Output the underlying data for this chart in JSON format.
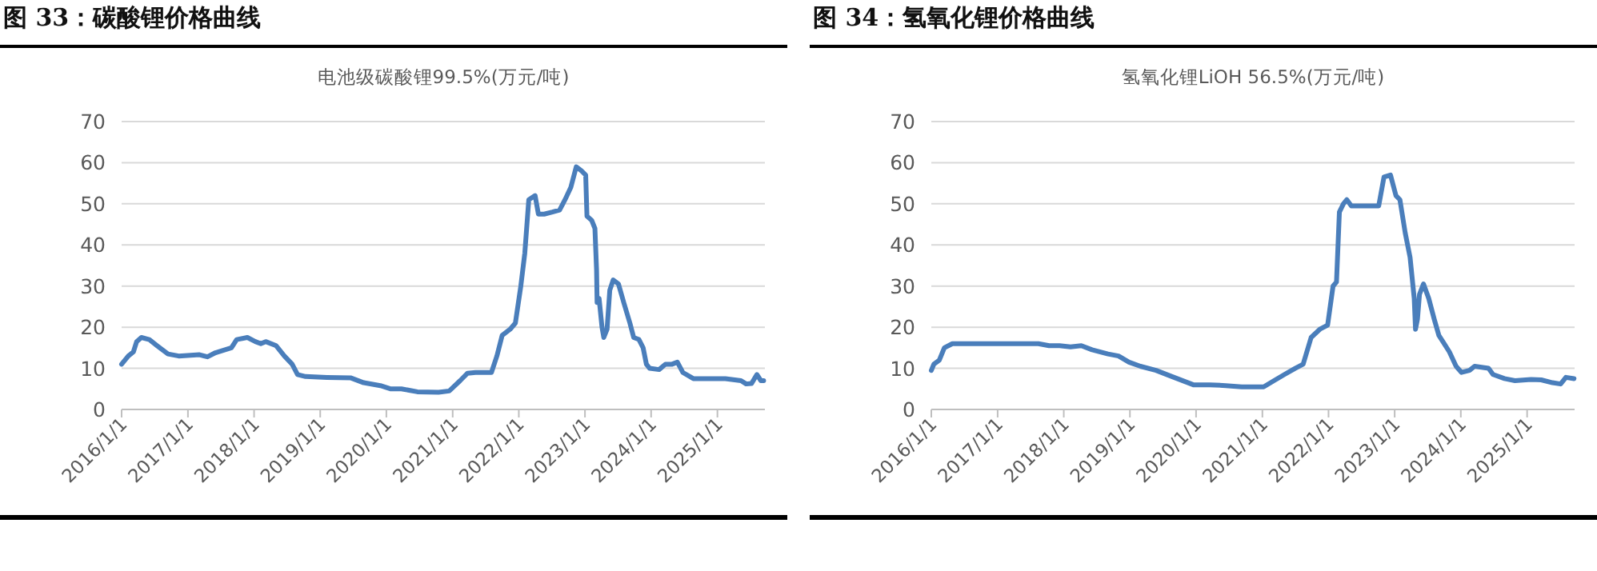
{
  "chart_data": [
    {
      "type": "line",
      "title": "图 33：碳酸锂价格曲线",
      "subtitle": "电池级碳酸锂99.5%(万元/吨)",
      "x": [
        "2016-01-01",
        "2016-02-07",
        "2016-03-06",
        "2016-03-24",
        "2016-04-19",
        "2016-06-02",
        "2016-07-15",
        "2016-09-13",
        "2016-11-11",
        "2017-03-06",
        "2017-04-19",
        "2017-06-02",
        "2017-08-29",
        "2017-09-27",
        "2017-11-25",
        "2018-01-08",
        "2018-02-07",
        "2018-03-06",
        "2018-05-03",
        "2018-06-17",
        "2018-07-30",
        "2018-08-29",
        "2018-10-12",
        "2019-02-07",
        "2019-06-17",
        "2019-08-29",
        "2019-11-29",
        "2020-01-26",
        "2020-03-24",
        "2020-06-20",
        "2020-10-15",
        "2020-12-13",
        "2021-02-11",
        "2021-03-24",
        "2021-05-07",
        "2021-08-03",
        "2021-09-02",
        "2021-10-01",
        "2021-11-14",
        "2021-12-13",
        "2022-01-12",
        "2022-02-03",
        "2022-02-25",
        "2022-04-01",
        "2022-04-19",
        "2022-05-21",
        "2022-07-05",
        "2022-08-14",
        "2022-09-13",
        "2022-10-15",
        "2022-11-14",
        "2022-12-13",
        "2023-01-05",
        "2023-01-12",
        "2023-02-07",
        "2023-02-25",
        "2023-03-06",
        "2023-03-09",
        "2023-03-20",
        "2023-04-05",
        "2023-04-15",
        "2023-05-03",
        "2023-05-18",
        "2023-06-06",
        "2023-07-05",
        "2023-08-03",
        "2023-09-06",
        "2023-09-27",
        "2023-10-26",
        "2023-11-18",
        "2023-12-06",
        "2023-12-24",
        "2024-02-14",
        "2024-03-20",
        "2024-04-26",
        "2024-05-25",
        "2024-06-24",
        "2024-08-21",
        "2024-11-18",
        "2025-02-14",
        "2025-05-11",
        "2025-06-09",
        "2025-07-08",
        "2025-08-07",
        "2025-08-29",
        "2025-09-13"
      ],
      "series": [
        {
          "color": "#4a7ebb",
          "values": [
            11,
            13,
            14,
            16.5,
            17.5,
            17,
            15.5,
            13.5,
            13,
            13.3,
            12.8,
            13.8,
            15,
            17,
            17.5,
            16.5,
            16,
            16.5,
            15.5,
            13,
            11,
            8.5,
            8,
            7.8,
            7.7,
            6.5,
            5.8,
            5,
            5,
            4.3,
            4.2,
            4.5,
            7,
            8.8,
            9,
            9,
            13,
            18,
            19.5,
            21,
            30,
            38,
            51,
            52,
            47.5,
            47.5,
            48,
            48.5,
            51,
            54,
            59,
            58,
            57,
            47,
            46,
            44,
            34,
            26,
            27,
            20,
            17.5,
            19.5,
            29,
            31.5,
            30.5,
            26,
            21,
            17.5,
            17,
            15,
            11,
            10,
            9.7,
            11,
            11,
            11.5,
            9,
            7.5,
            7.5,
            7.5,
            7,
            6.2,
            6.3,
            8.5,
            7,
            7
          ]
        }
      ],
      "xlim": [
        "2016-01-01",
        "2025-09-20"
      ],
      "xticks": [
        {
          "value": "2016-01-01",
          "label": "2016/1/1"
        },
        {
          "value": "2017-01-01",
          "label": "2017/1/1"
        },
        {
          "value": "2018-01-01",
          "label": "2018/1/1"
        },
        {
          "value": "2019-01-01",
          "label": "2019/1/1"
        },
        {
          "value": "2020-01-01",
          "label": "2020/1/1"
        },
        {
          "value": "2021-01-01",
          "label": "2021/1/1"
        },
        {
          "value": "2022-01-01",
          "label": "2022/1/1"
        },
        {
          "value": "2023-01-01",
          "label": "2023/1/1"
        },
        {
          "value": "2024-01-01",
          "label": "2024/1/1"
        },
        {
          "value": "2025-01-01",
          "label": "2025/1/1"
        }
      ],
      "ylim": [
        0,
        70
      ],
      "yticks": [
        0,
        10,
        20,
        30,
        40,
        50,
        60,
        70
      ],
      "grid": "y"
    },
    {
      "type": "line",
      "title": "图 34：氢氧化锂价格曲线",
      "subtitle": "氢氧化锂LiOH 56.5%(万元/吨)",
      "x": [
        "2016-01-01",
        "2016-01-15",
        "2016-02-14",
        "2016-03-13",
        "2016-04-26",
        "2016-10-23",
        "2017-08-14",
        "2017-10-12",
        "2017-12-09",
        "2018-02-07",
        "2018-04-08",
        "2018-06-06",
        "2018-09-02",
        "2018-10-30",
        "2018-12-27",
        "2019-02-28",
        "2019-05-25",
        "2019-08-21",
        "2019-12-17",
        "2020-03-17",
        "2020-06-13",
        "2020-09-09",
        "2021-01-08",
        "2021-03-06",
        "2021-05-03",
        "2021-07-01",
        "2021-08-14",
        "2021-09-27",
        "2021-11-14",
        "2021-12-27",
        "2022-01-26",
        "2022-02-14",
        "2022-03-02",
        "2022-03-24",
        "2022-04-12",
        "2022-05-07",
        "2022-06-20",
        "2022-10-05",
        "2022-11-03",
        "2022-12-09",
        "2023-01-08",
        "2023-01-30",
        "2023-02-28",
        "2023-03-27",
        "2023-04-19",
        "2023-04-26",
        "2023-05-07",
        "2023-05-18",
        "2023-06-09",
        "2023-07-08",
        "2023-08-07",
        "2023-09-02",
        "2023-10-01",
        "2023-10-30",
        "2023-12-06",
        "2024-01-05",
        "2024-02-18",
        "2024-03-17",
        "2024-06-02",
        "2024-06-27",
        "2024-08-29",
        "2024-10-26",
        "2025-01-23",
        "2025-03-20",
        "2025-05-21",
        "2025-07-05",
        "2025-08-03",
        "2025-09-17"
      ],
      "series": [
        {
          "color": "#4a7ebb",
          "values": [
            9.5,
            11,
            12,
            15,
            16,
            16,
            16,
            15.5,
            15.5,
            15.2,
            15.5,
            14.5,
            13.5,
            13,
            11.5,
            10.5,
            9.5,
            8,
            6,
            6,
            5.8,
            5.5,
            5.5,
            7,
            8.5,
            10,
            11,
            17.5,
            19.5,
            20.5,
            30,
            31,
            48,
            50,
            51,
            49.5,
            49.5,
            49.5,
            56.5,
            57,
            52,
            51,
            43,
            37,
            27,
            19.5,
            22,
            28,
            30.5,
            27,
            22,
            18,
            16,
            14,
            10.5,
            9,
            9.5,
            10.5,
            10,
            8.5,
            7.5,
            7,
            7.3,
            7.2,
            6.5,
            6.2,
            7.8,
            7.5
          ]
        }
      ],
      "xlim": [
        "2016-01-01",
        "2025-09-20"
      ],
      "xticks": [
        {
          "value": "2016-01-01",
          "label": "2016/1/1"
        },
        {
          "value": "2017-01-01",
          "label": "2017/1/1"
        },
        {
          "value": "2018-01-01",
          "label": "2018/1/1"
        },
        {
          "value": "2019-01-01",
          "label": "2019/1/1"
        },
        {
          "value": "2020-01-01",
          "label": "2020/1/1"
        },
        {
          "value": "2021-01-01",
          "label": "2021/1/1"
        },
        {
          "value": "2022-01-01",
          "label": "2022/1/1"
        },
        {
          "value": "2023-01-01",
          "label": "2023/1/1"
        },
        {
          "value": "2024-01-01",
          "label": "2024/1/1"
        },
        {
          "value": "2025-01-01",
          "label": "2025/1/1"
        }
      ],
      "ylim": [
        0,
        70
      ],
      "yticks": [
        0,
        10,
        20,
        30,
        40,
        50,
        60,
        70
      ],
      "grid": "y"
    }
  ]
}
